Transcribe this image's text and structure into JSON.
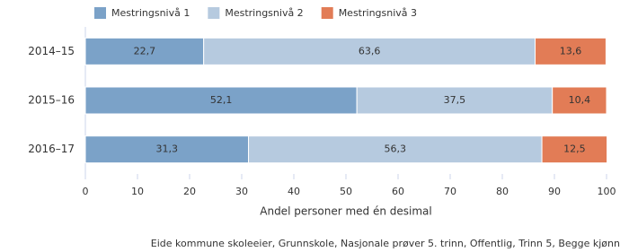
{
  "chart_data": {
    "type": "bar",
    "orientation": "horizontal",
    "stacked": true,
    "categories": [
      "2014–15",
      "2015–16",
      "2016–17"
    ],
    "series": [
      {
        "name": "Mestringsnivå 1",
        "color": "#7ba2c8",
        "values": [
          22.7,
          52.1,
          31.3
        ],
        "value_labels": [
          "22,7",
          "52,1",
          "31,3"
        ]
      },
      {
        "name": "Mestringsnivå 2",
        "color": "#b6cadf",
        "values": [
          63.6,
          37.5,
          56.3
        ],
        "value_labels": [
          "63,6",
          "37,5",
          "56,3"
        ]
      },
      {
        "name": "Mestringsnivå 3",
        "color": "#e27c56",
        "values": [
          13.6,
          10.4,
          12.5
        ],
        "value_labels": [
          "13,6",
          "10,4",
          "12,5"
        ]
      }
    ],
    "xlim": [
      0,
      100
    ],
    "xticks": [
      0,
      10,
      20,
      30,
      40,
      50,
      60,
      70,
      80,
      90,
      100
    ],
    "x_label": "Andel personer med én desimal",
    "source": "Eide kommune skoleeier, Grunnskole, Nasjonale prøver 5. trinn, Offentlig, Trinn 5, Begge kjønn"
  }
}
